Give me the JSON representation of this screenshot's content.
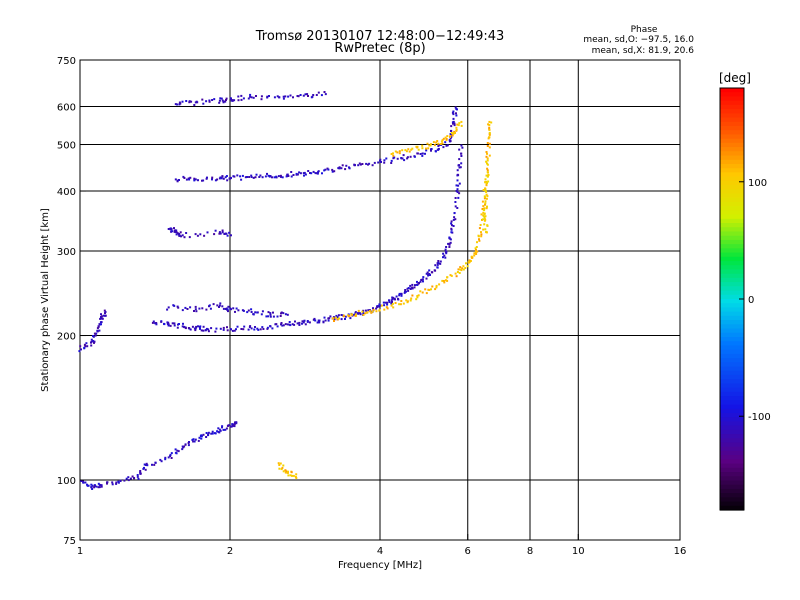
{
  "chart_data": {
    "type": "scatter",
    "title": "Tromsø 20130107 12:48:00−12:49:43",
    "subtitle": "RwPretec (8p)",
    "xlabel": "Frequency [MHz]",
    "ylabel": "Stationary phase Virtual Height [km]",
    "x_scale": "log",
    "y_scale": "log",
    "xlim": [
      1,
      16
    ],
    "ylim": [
      75,
      750
    ],
    "x_ticks": [
      1,
      2,
      4,
      6,
      8,
      10,
      16
    ],
    "y_ticks": [
      75,
      100,
      200,
      300,
      400,
      500,
      600,
      750
    ],
    "x_gridlines": [
      2,
      4,
      6,
      8,
      10
    ],
    "y_gridlines": [
      100,
      200,
      300,
      400,
      500,
      600
    ],
    "grid": true,
    "phase_info": {
      "header": "Phase",
      "line_o": "mean, sd,O: −97.5, 16.0",
      "line_x": "mean, sd,X:  81.9, 20.6"
    },
    "colorbar": {
      "label": "[deg]",
      "range": [
        -180,
        180
      ],
      "ticks": [
        100,
        0,
        -100
      ],
      "colormap": "rainbow"
    },
    "series": [
      {
        "name": "",
        "traces": [
          {
            "phase": -110,
            "points": [
              [
                1.0,
                188
              ],
              [
                1.05,
                195
              ],
              [
                1.08,
                205
              ],
              [
                1.1,
                218
              ],
              [
                1.12,
                225
              ]
            ]
          },
          {
            "phase": -108,
            "points": [
              [
                1.4,
                215
              ],
              [
                1.5,
                212
              ],
              [
                1.6,
                210
              ],
              [
                1.7,
                208
              ],
              [
                1.8,
                207
              ],
              [
                2.0,
                207
              ],
              [
                2.2,
                208
              ],
              [
                2.4,
                210
              ],
              [
                2.6,
                212
              ],
              [
                2.8,
                214
              ],
              [
                3.0,
                216
              ],
              [
                3.2,
                218
              ],
              [
                3.4,
                220
              ],
              [
                3.6,
                223
              ],
              [
                3.8,
                227
              ],
              [
                4.0,
                232
              ],
              [
                4.2,
                238
              ],
              [
                4.4,
                245
              ],
              [
                4.6,
                252
              ],
              [
                4.8,
                260
              ],
              [
                5.0,
                270
              ],
              [
                5.2,
                282
              ],
              [
                5.4,
                300
              ],
              [
                5.5,
                320
              ],
              [
                5.6,
                350
              ],
              [
                5.7,
                400
              ],
              [
                5.75,
                450
              ],
              [
                5.8,
                500
              ]
            ]
          },
          {
            "phase": -110,
            "points": [
              [
                1.5,
                230
              ],
              [
                1.7,
                228
              ],
              [
                1.9,
                232
              ],
              [
                2.0,
                228
              ],
              [
                2.2,
                225
              ],
              [
                2.4,
                222
              ],
              [
                2.6,
                222
              ]
            ]
          },
          {
            "phase": 110,
            "points": [
              [
                3.2,
                218
              ],
              [
                3.5,
                222
              ],
              [
                3.8,
                226
              ],
              [
                4.2,
                232
              ],
              [
                4.6,
                240
              ],
              [
                5.0,
                250
              ],
              [
                5.4,
                262
              ],
              [
                5.8,
                275
              ],
              [
                6.0,
                285
              ],
              [
                6.2,
                300
              ],
              [
                6.35,
                330
              ],
              [
                6.45,
                370
              ],
              [
                6.5,
                420
              ],
              [
                6.55,
                470
              ],
              [
                6.6,
                520
              ],
              [
                6.6,
                560
              ]
            ]
          },
          {
            "phase": -108,
            "points": [
              [
                1.55,
                425
              ],
              [
                1.7,
                425
              ],
              [
                1.9,
                427
              ],
              [
                2.0,
                428
              ],
              [
                2.2,
                430
              ],
              [
                2.4,
                432
              ],
              [
                2.6,
                435
              ],
              [
                2.8,
                438
              ],
              [
                3.0,
                442
              ],
              [
                3.3,
                448
              ],
              [
                3.6,
                455
              ],
              [
                4.0,
                462
              ],
              [
                4.4,
                470
              ],
              [
                4.8,
                480
              ],
              [
                5.2,
                490
              ],
              [
                5.5,
                510
              ],
              [
                5.6,
                560
              ],
              [
                5.65,
                600
              ]
            ]
          },
          {
            "phase": 108,
            "points": [
              [
                4.2,
                480
              ],
              [
                4.6,
                490
              ],
              [
                5.0,
                500
              ],
              [
                5.3,
                510
              ],
              [
                5.6,
                530
              ],
              [
                5.8,
                560
              ]
            ]
          },
          {
            "phase": -110,
            "points": [
              [
                1.55,
                610
              ],
              [
                1.7,
                615
              ],
              [
                1.9,
                620
              ],
              [
                2.0,
                625
              ],
              [
                2.2,
                630
              ],
              [
                2.5,
                630
              ],
              [
                2.8,
                635
              ],
              [
                3.1,
                640
              ]
            ]
          },
          {
            "phase": -110,
            "points": [
              [
                1.5,
                335
              ],
              [
                1.55,
                330
              ],
              [
                1.6,
                325
              ],
              [
                1.9,
                330
              ],
              [
                2.0,
                325
              ]
            ]
          },
          {
            "phase": -108,
            "points": [
              [
                1.0,
                100
              ],
              [
                1.05,
                97
              ],
              [
                1.1,
                98
              ],
              [
                1.2,
                100
              ],
              [
                1.3,
                102
              ],
              [
                1.35,
                108
              ],
              [
                1.5,
                112
              ],
              [
                1.6,
                118
              ],
              [
                1.7,
                122
              ],
              [
                1.8,
                125
              ],
              [
                1.9,
                128
              ],
              [
                2.0,
                130
              ],
              [
                2.05,
                132
              ]
            ]
          },
          {
            "phase": 110,
            "points": [
              [
                2.5,
                108
              ],
              [
                2.6,
                104
              ],
              [
                2.7,
                102
              ]
            ]
          },
          {
            "phase": 100,
            "points": [
              [
                6.5,
                330
              ],
              [
                6.45,
                360
              ],
              [
                6.5,
                400
              ],
              [
                6.55,
                440
              ]
            ]
          }
        ]
      }
    ]
  }
}
